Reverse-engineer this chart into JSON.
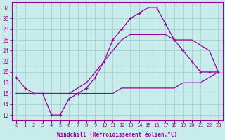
{
  "xlabel": "Windchill (Refroidissement éolien,°C)",
  "ylabel": "",
  "bg_color": "#c8ecec",
  "grid_color": "#aad4d4",
  "line_color": "#990099",
  "hours": [
    0,
    1,
    2,
    3,
    4,
    5,
    6,
    7,
    8,
    9,
    10,
    11,
    12,
    13,
    14,
    15,
    16,
    17,
    18,
    19,
    20,
    21,
    22,
    23
  ],
  "temp_actual": [
    19,
    17,
    16,
    16,
    12,
    12,
    15,
    16,
    17,
    19,
    22,
    26,
    28,
    30,
    31,
    32,
    32,
    29,
    26,
    24,
    22,
    20,
    20,
    20
  ],
  "temp_min": [
    16,
    16,
    16,
    16,
    16,
    16,
    16,
    16,
    16,
    16,
    16,
    16,
    17,
    17,
    17,
    17,
    17,
    17,
    17,
    18,
    18,
    18,
    19,
    20
  ],
  "temp_max": [
    16,
    16,
    16,
    16,
    16,
    16,
    16,
    17,
    18,
    20,
    22,
    24,
    26,
    27,
    27,
    27,
    27,
    27,
    26,
    26,
    26,
    25,
    24,
    20
  ],
  "ylim": [
    11,
    33
  ],
  "yticks": [
    12,
    14,
    16,
    18,
    20,
    22,
    24,
    26,
    28,
    30,
    32
  ],
  "xticks": [
    0,
    1,
    2,
    3,
    4,
    5,
    6,
    7,
    8,
    9,
    10,
    11,
    12,
    13,
    14,
    15,
    16,
    17,
    18,
    19,
    20,
    21,
    22,
    23
  ]
}
